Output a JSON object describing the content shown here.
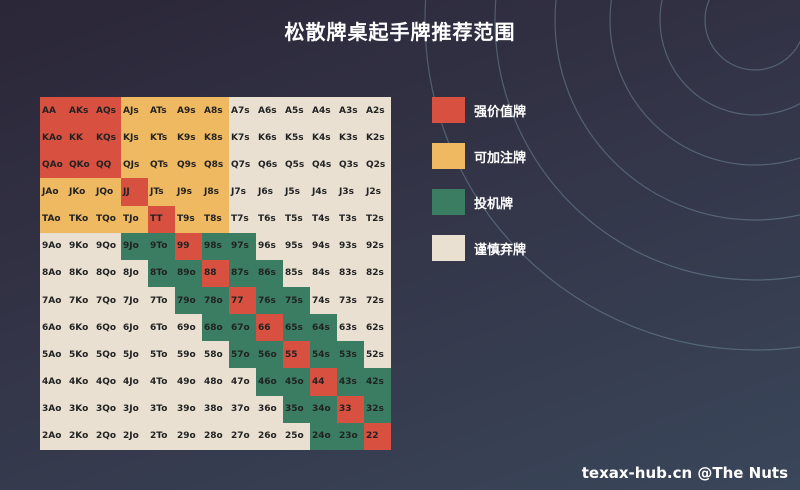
{
  "title": "松散牌桌起手牌推荐范围",
  "colors": {
    "strong": "#d8503f",
    "callable": "#efb961",
    "speculative": "#3a7d62",
    "fold": "#e9e0d2"
  },
  "legend": [
    {
      "label": "强价值牌",
      "color": "#d8503f",
      "icon": "red-square-icon"
    },
    {
      "label": "可加注牌",
      "color": "#efb961",
      "icon": "yellow-square-icon"
    },
    {
      "label": "投机牌",
      "color": "#3a7d62",
      "icon": "green-square-icon"
    },
    {
      "label": "谨慎弃牌",
      "color": "#e9e0d2",
      "icon": "beige-square-icon"
    }
  ],
  "grid": [
    [
      [
        "AA",
        "r"
      ],
      [
        "AKs",
        "r"
      ],
      [
        "AQs",
        "r"
      ],
      [
        "AJs",
        "y"
      ],
      [
        "ATs",
        "y"
      ],
      [
        "A9s",
        "y"
      ],
      [
        "A8s",
        "y"
      ],
      [
        "A7s",
        "w"
      ],
      [
        "A6s",
        "w"
      ],
      [
        "A5s",
        "w"
      ],
      [
        "A4s",
        "w"
      ],
      [
        "A3s",
        "w"
      ],
      [
        "A2s",
        "w"
      ]
    ],
    [
      [
        "KAo",
        "r"
      ],
      [
        "KK",
        "r"
      ],
      [
        "KQs",
        "r"
      ],
      [
        "KJs",
        "y"
      ],
      [
        "KTs",
        "y"
      ],
      [
        "K9s",
        "y"
      ],
      [
        "K8s",
        "y"
      ],
      [
        "K7s",
        "w"
      ],
      [
        "K6s",
        "w"
      ],
      [
        "K5s",
        "w"
      ],
      [
        "K4s",
        "w"
      ],
      [
        "K3s",
        "w"
      ],
      [
        "K2s",
        "w"
      ]
    ],
    [
      [
        "QAo",
        "r"
      ],
      [
        "QKo",
        "r"
      ],
      [
        "QQ",
        "r"
      ],
      [
        "QJs",
        "y"
      ],
      [
        "QTs",
        "y"
      ],
      [
        "Q9s",
        "y"
      ],
      [
        "Q8s",
        "y"
      ],
      [
        "Q7s",
        "w"
      ],
      [
        "Q6s",
        "w"
      ],
      [
        "Q5s",
        "w"
      ],
      [
        "Q4s",
        "w"
      ],
      [
        "Q3s",
        "w"
      ],
      [
        "Q2s",
        "w"
      ]
    ],
    [
      [
        "JAo",
        "y"
      ],
      [
        "JKo",
        "y"
      ],
      [
        "JQo",
        "y"
      ],
      [
        "JJ",
        "r"
      ],
      [
        "JTs",
        "y"
      ],
      [
        "J9s",
        "y"
      ],
      [
        "J8s",
        "y"
      ],
      [
        "J7s",
        "w"
      ],
      [
        "J6s",
        "w"
      ],
      [
        "J5s",
        "w"
      ],
      [
        "J4s",
        "w"
      ],
      [
        "J3s",
        "w"
      ],
      [
        "J2s",
        "w"
      ]
    ],
    [
      [
        "TAo",
        "y"
      ],
      [
        "TKo",
        "y"
      ],
      [
        "TQo",
        "y"
      ],
      [
        "TJo",
        "y"
      ],
      [
        "TT",
        "r"
      ],
      [
        "T9s",
        "y"
      ],
      [
        "T8s",
        "y"
      ],
      [
        "T7s",
        "w"
      ],
      [
        "T6s",
        "w"
      ],
      [
        "T5s",
        "w"
      ],
      [
        "T4s",
        "w"
      ],
      [
        "T3s",
        "w"
      ],
      [
        "T2s",
        "w"
      ]
    ],
    [
      [
        "9Ao",
        "w"
      ],
      [
        "9Ko",
        "w"
      ],
      [
        "9Qo",
        "w"
      ],
      [
        "9Jo",
        "g"
      ],
      [
        "9To",
        "g"
      ],
      [
        "99",
        "r"
      ],
      [
        "98s",
        "g"
      ],
      [
        "97s",
        "g"
      ],
      [
        "96s",
        "w"
      ],
      [
        "95s",
        "w"
      ],
      [
        "94s",
        "w"
      ],
      [
        "93s",
        "w"
      ],
      [
        "92s",
        "w"
      ]
    ],
    [
      [
        "8Ao",
        "w"
      ],
      [
        "8Ko",
        "w"
      ],
      [
        "8Qo",
        "w"
      ],
      [
        "8Jo",
        "w"
      ],
      [
        "8To",
        "g"
      ],
      [
        "89o",
        "g"
      ],
      [
        "88",
        "r"
      ],
      [
        "87s",
        "g"
      ],
      [
        "86s",
        "g"
      ],
      [
        "85s",
        "w"
      ],
      [
        "84s",
        "w"
      ],
      [
        "83s",
        "w"
      ],
      [
        "82s",
        "w"
      ]
    ],
    [
      [
        "7Ao",
        "w"
      ],
      [
        "7Ko",
        "w"
      ],
      [
        "7Qo",
        "w"
      ],
      [
        "7Jo",
        "w"
      ],
      [
        "7To",
        "w"
      ],
      [
        "79o",
        "g"
      ],
      [
        "78o",
        "g"
      ],
      [
        "77",
        "r"
      ],
      [
        "76s",
        "g"
      ],
      [
        "75s",
        "g"
      ],
      [
        "74s",
        "w"
      ],
      [
        "73s",
        "w"
      ],
      [
        "72s",
        "w"
      ]
    ],
    [
      [
        "6Ao",
        "w"
      ],
      [
        "6Ko",
        "w"
      ],
      [
        "6Qo",
        "w"
      ],
      [
        "6Jo",
        "w"
      ],
      [
        "6To",
        "w"
      ],
      [
        "69o",
        "w"
      ],
      [
        "68o",
        "g"
      ],
      [
        "67o",
        "g"
      ],
      [
        "66",
        "r"
      ],
      [
        "65s",
        "g"
      ],
      [
        "64s",
        "g"
      ],
      [
        "63s",
        "w"
      ],
      [
        "62s",
        "w"
      ]
    ],
    [
      [
        "5Ao",
        "w"
      ],
      [
        "5Ko",
        "w"
      ],
      [
        "5Qo",
        "w"
      ],
      [
        "5Jo",
        "w"
      ],
      [
        "5To",
        "w"
      ],
      [
        "59o",
        "w"
      ],
      [
        "58o",
        "w"
      ],
      [
        "57o",
        "g"
      ],
      [
        "56o",
        "g"
      ],
      [
        "55",
        "r"
      ],
      [
        "54s",
        "g"
      ],
      [
        "53s",
        "g"
      ],
      [
        "52s",
        "w"
      ]
    ],
    [
      [
        "4Ao",
        "w"
      ],
      [
        "4Ko",
        "w"
      ],
      [
        "4Qo",
        "w"
      ],
      [
        "4Jo",
        "w"
      ],
      [
        "4To",
        "w"
      ],
      [
        "49o",
        "w"
      ],
      [
        "48o",
        "w"
      ],
      [
        "47o",
        "w"
      ],
      [
        "46o",
        "g"
      ],
      [
        "45o",
        "g"
      ],
      [
        "44",
        "r"
      ],
      [
        "43s",
        "g"
      ],
      [
        "42s",
        "g"
      ]
    ],
    [
      [
        "3Ao",
        "w"
      ],
      [
        "3Ko",
        "w"
      ],
      [
        "3Qo",
        "w"
      ],
      [
        "3Jo",
        "w"
      ],
      [
        "3To",
        "w"
      ],
      [
        "39o",
        "w"
      ],
      [
        "38o",
        "w"
      ],
      [
        "37o",
        "w"
      ],
      [
        "36o",
        "w"
      ],
      [
        "35o",
        "g"
      ],
      [
        "34o",
        "g"
      ],
      [
        "33",
        "r"
      ],
      [
        "32s",
        "g"
      ]
    ],
    [
      [
        "2Ao",
        "w"
      ],
      [
        "2Ko",
        "w"
      ],
      [
        "2Qo",
        "w"
      ],
      [
        "2Jo",
        "w"
      ],
      [
        "2To",
        "w"
      ],
      [
        "29o",
        "w"
      ],
      [
        "28o",
        "w"
      ],
      [
        "27o",
        "w"
      ],
      [
        "26o",
        "w"
      ],
      [
        "25o",
        "w"
      ],
      [
        "24o",
        "g"
      ],
      [
        "23o",
        "g"
      ],
      [
        "22",
        "r"
      ]
    ]
  ],
  "watermark": "texax-hub.cn @The Nuts"
}
